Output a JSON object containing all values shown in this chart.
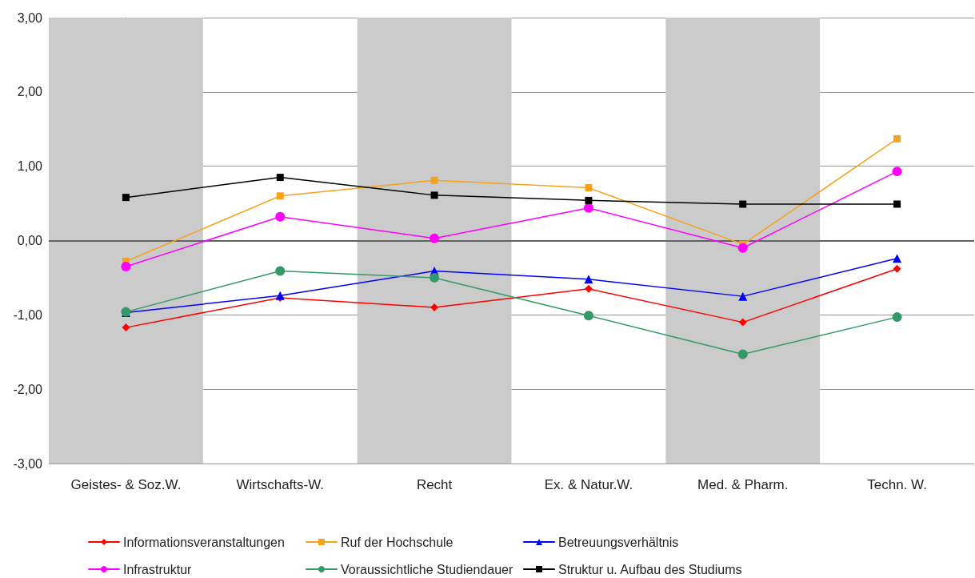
{
  "chart_data": {
    "type": "line",
    "categories": [
      "Geistes- & Soz.W.",
      "Wirtschafts-W.",
      "Recht",
      "Ex. & Natur.W.",
      "Med. & Pharm.",
      "Techn. W."
    ],
    "series": [
      {
        "name": "Informationsveranstaltungen",
        "color": "#ff0000",
        "marker": "diamond",
        "values": [
          -1.17,
          -0.77,
          -0.9,
          -0.65,
          -1.1,
          -0.38
        ]
      },
      {
        "name": "Ruf der Hochschule",
        "color": "#f7a21b",
        "marker": "square",
        "values": [
          -0.28,
          0.6,
          0.81,
          0.71,
          -0.05,
          1.37
        ]
      },
      {
        "name": "Betreuungsverhältnis",
        "color": "#0000ff",
        "marker": "triangle",
        "values": [
          -0.97,
          -0.74,
          -0.41,
          -0.52,
          -0.75,
          -0.24
        ]
      },
      {
        "name": "Infrastruktur",
        "color": "#ff00ff",
        "marker": "circle",
        "values": [
          -0.35,
          0.32,
          0.03,
          0.44,
          -0.1,
          0.93
        ]
      },
      {
        "name": "Voraussichtliche Studiendauer",
        "color": "#339966",
        "marker": "circle",
        "values": [
          -0.96,
          -0.41,
          -0.5,
          -1.01,
          -1.53,
          -1.03
        ]
      },
      {
        "name": "Struktur u. Aufbau des Studiums",
        "color": "#000000",
        "marker": "square",
        "values": [
          0.58,
          0.85,
          0.61,
          0.54,
          0.49,
          0.49
        ]
      }
    ],
    "ylim": [
      -3,
      3
    ],
    "yticks": [
      {
        "value": -3,
        "label": "-3,00"
      },
      {
        "value": -2,
        "label": "-2,00"
      },
      {
        "value": -1,
        "label": "-1,00"
      },
      {
        "value": 0,
        "label": "0,00"
      },
      {
        "value": 1,
        "label": "1,00"
      },
      {
        "value": 2,
        "label": "2,00"
      },
      {
        "value": 3,
        "label": "3,00"
      }
    ],
    "ref_lines": [
      {
        "axis": "y",
        "value": 0,
        "color": "#404040"
      }
    ],
    "bands": [
      {
        "axis": "x",
        "from": "Geistes- & Soz.W.",
        "to": "Geistes- & Soz.W.",
        "color": "#cbcbcb"
      },
      {
        "axis": "x",
        "from": "Recht",
        "to": "Recht",
        "color": "#cbcbcb"
      },
      {
        "axis": "x",
        "from": "Med. & Pharm.",
        "to": "Med. & Pharm.",
        "color": "#cbcbcb"
      }
    ],
    "grid": "y",
    "legend": "bottom",
    "line_style": "solid"
  }
}
